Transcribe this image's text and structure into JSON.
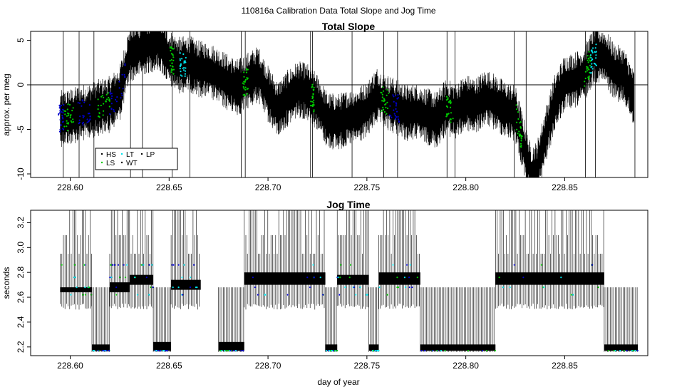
{
  "figure_title": "110816a   Calibration Data Total Slope and Jog Time",
  "xlabel": "day of year",
  "colors": {
    "HS": "#000000",
    "LS": "#00cc00",
    "LT": "#00e5ee",
    "WT": "#000000",
    "LP": "#000000",
    "series": "#000000",
    "blue": "#0000cc"
  },
  "chart_data": [
    {
      "type": "line",
      "title": "Total Slope",
      "ylabel": "approx. per meg",
      "xlabel": "",
      "xlim": [
        228.58,
        228.892
      ],
      "ylim": [
        -10.4,
        6
      ],
      "xticks": [
        228.6,
        228.65,
        228.7,
        228.75,
        228.8,
        228.85
      ],
      "xtick_labels": [
        "228.60",
        "228.65",
        "228.70",
        "228.75",
        "228.80",
        "228.85"
      ],
      "yticks": [
        -10,
        -5,
        0,
        5
      ],
      "ytick_labels": [
        "-10",
        "-5",
        "0",
        "5"
      ],
      "reference_line_y": 0,
      "grid": false,
      "legend": {
        "placement": "bottom-left",
        "entries": [
          "HS",
          "LS",
          "LT",
          "WT",
          "LP"
        ]
      },
      "series": [
        {
          "name": "",
          "x": [
            228.595,
            228.6,
            228.605,
            228.61,
            228.615,
            228.62,
            228.625,
            228.63,
            228.635,
            228.64,
            228.645,
            228.65,
            228.655,
            228.66,
            228.665,
            228.67,
            228.675,
            228.68,
            228.685,
            228.69,
            228.695,
            228.7,
            228.705,
            228.71,
            228.715,
            228.72,
            228.725,
            228.73,
            228.735,
            228.74,
            228.745,
            228.75,
            228.755,
            228.76,
            228.765,
            228.77,
            228.775,
            228.78,
            228.785,
            228.79,
            228.795,
            228.8,
            228.805,
            228.81,
            228.815,
            228.82,
            228.825,
            228.83,
            228.833,
            228.836,
            228.84,
            228.845,
            228.85,
            228.855,
            228.86,
            228.865,
            228.87,
            228.875,
            228.88,
            228.885
          ],
          "values": [
            -3.8,
            -3.6,
            -3.2,
            -3.0,
            -2.5,
            -2.2,
            -1.0,
            3.5,
            4.0,
            4.5,
            4.8,
            3.0,
            2.2,
            2.4,
            1.8,
            1.6,
            1.0,
            0.2,
            -0.3,
            0.5,
            1.2,
            -1.0,
            -2.8,
            -1.5,
            -0.5,
            -0.8,
            -2.0,
            -4.0,
            -4.2,
            -3.8,
            -3.5,
            -2.8,
            -1.2,
            -2.0,
            -2.5,
            -3.2,
            -3.0,
            -3.5,
            -4.0,
            -2.5,
            -3.0,
            -2.0,
            -2.4,
            -1.4,
            -2.0,
            -2.8,
            -3.2,
            -7.5,
            -10.0,
            -9.5,
            -6.0,
            -2.0,
            0.2,
            0.5,
            1.2,
            3.5,
            3.2,
            1.5,
            1.0,
            -1.5
          ]
        }
      ]
    },
    {
      "type": "line",
      "title": "Jog Time",
      "ylabel": "seconds",
      "xlabel": "day of year",
      "xlim": [
        228.58,
        228.892
      ],
      "ylim": [
        2.13,
        3.3
      ],
      "xticks": [
        228.6,
        228.65,
        228.7,
        228.75,
        228.8,
        228.85
      ],
      "xtick_labels": [
        "228.60",
        "228.65",
        "228.70",
        "228.75",
        "228.80",
        "228.85"
      ],
      "yticks": [
        2.2,
        2.4,
        2.6,
        2.8,
        3.0,
        3.2
      ],
      "ytick_labels": [
        "2.2",
        "2.4",
        "2.6",
        "2.8",
        "3.0",
        "3.2"
      ],
      "grid": false,
      "series": [
        {
          "name": "",
          "segments": [
            {
              "x_start": 228.595,
              "x_end": 228.611,
              "base": 2.64,
              "high": 2.68
            },
            {
              "x_start": 228.611,
              "x_end": 228.62,
              "base": 2.17,
              "high": 2.22
            },
            {
              "x_start": 228.62,
              "x_end": 228.63,
              "base": 2.64,
              "high": 2.72
            },
            {
              "x_start": 228.63,
              "x_end": 228.642,
              "base": 2.7,
              "high": 2.78
            },
            {
              "x_start": 228.642,
              "x_end": 228.651,
              "base": 2.17,
              "high": 2.24
            },
            {
              "x_start": 228.651,
              "x_end": 228.666,
              "base": 2.66,
              "high": 2.74
            },
            {
              "x_start": 228.675,
              "x_end": 228.688,
              "base": 2.17,
              "high": 2.24
            },
            {
              "x_start": 228.688,
              "x_end": 228.729,
              "base": 2.7,
              "high": 2.8
            },
            {
              "x_start": 228.729,
              "x_end": 228.735,
              "base": 2.17,
              "high": 2.22
            },
            {
              "x_start": 228.735,
              "x_end": 228.751,
              "base": 2.7,
              "high": 2.78
            },
            {
              "x_start": 228.751,
              "x_end": 228.756,
              "base": 2.17,
              "high": 2.22
            },
            {
              "x_start": 228.756,
              "x_end": 228.777,
              "base": 2.7,
              "high": 2.8
            },
            {
              "x_start": 228.777,
              "x_end": 228.815,
              "base": 2.17,
              "high": 2.22
            },
            {
              "x_start": 228.815,
              "x_end": 228.87,
              "base": 2.7,
              "high": 2.8
            },
            {
              "x_start": 228.87,
              "x_end": 228.887,
              "base": 2.17,
              "high": 2.22
            }
          ]
        }
      ]
    }
  ]
}
